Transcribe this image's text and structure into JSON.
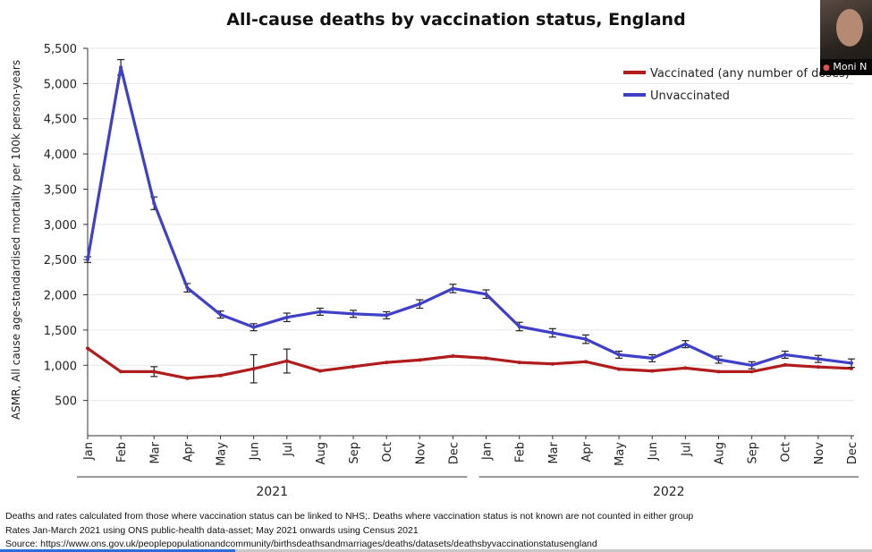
{
  "chart_data": {
    "type": "line",
    "title": "All-cause deaths by vaccination status, England",
    "ylabel": "ASMR, All cause age-standardised mortality per 100k person-years",
    "xlabel": "",
    "ylim": [
      0,
      5500
    ],
    "yticks": [
      500,
      1000,
      1500,
      2000,
      2500,
      3000,
      3500,
      4000,
      4500,
      5000,
      5500
    ],
    "ytick_labels": [
      "500",
      "1,000",
      "1,500",
      "2,000",
      "2,500",
      "3,000",
      "3,500",
      "4,000",
      "4,500",
      "5,000",
      "5,500"
    ],
    "categories": [
      "Jan",
      "Feb",
      "Mar",
      "Apr",
      "May",
      "Jun",
      "Jul",
      "Aug",
      "Sep",
      "Oct",
      "Nov",
      "Dec",
      "Jan",
      "Feb",
      "Mar",
      "Apr",
      "May",
      "Jun",
      "Jul",
      "Aug",
      "Sep",
      "Oct",
      "Nov",
      "Dec"
    ],
    "year_groups": [
      {
        "label": "2021",
        "start": 0,
        "end": 11
      },
      {
        "label": "2022",
        "start": 12,
        "end": 23
      }
    ],
    "legend_position": "top-right",
    "series": [
      {
        "name": "Vaccinated (any number of doses)",
        "color": "#b01c1c",
        "values": [
          1240,
          910,
          910,
          815,
          855,
          950,
          1060,
          920,
          980,
          1040,
          1075,
          1130,
          1100,
          1040,
          1020,
          1050,
          945,
          920,
          960,
          910,
          910,
          1005,
          975,
          955
        ],
        "errors": [
          0,
          0,
          70,
          0,
          0,
          200,
          170,
          0,
          0,
          0,
          0,
          0,
          0,
          0,
          0,
          0,
          0,
          0,
          0,
          0,
          0,
          0,
          0,
          0
        ]
      },
      {
        "name": "Unvaccinated",
        "color": "#3f3fc8",
        "values": [
          2500,
          5230,
          3300,
          2100,
          1720,
          1540,
          1680,
          1760,
          1730,
          1710,
          1870,
          2090,
          2010,
          1550,
          1460,
          1370,
          1150,
          1100,
          1300,
          1080,
          1000,
          1150,
          1090,
          1030
        ],
        "errors": [
          40,
          110,
          90,
          60,
          50,
          50,
          60,
          50,
          50,
          50,
          60,
          60,
          60,
          60,
          60,
          60,
          50,
          50,
          50,
          50,
          50,
          50,
          50,
          60
        ]
      }
    ]
  },
  "footnotes": {
    "line1": "Deaths and rates calculated from those where vaccination status can be linked to NHS;. Deaths where vaccination status is not known are not counted in either group",
    "line2": "Rates Jan-March 2021 using ONS public-health data-asset; May 2021 onwards using Census 2021",
    "line3": "Source: https://www.ons.gov.uk/peoplepopulationandcommunity/birthsdeathsandmarriages/deaths/datasets/deathsbyvaccinationstatusengland"
  },
  "webcam": {
    "name": "Moni N"
  }
}
